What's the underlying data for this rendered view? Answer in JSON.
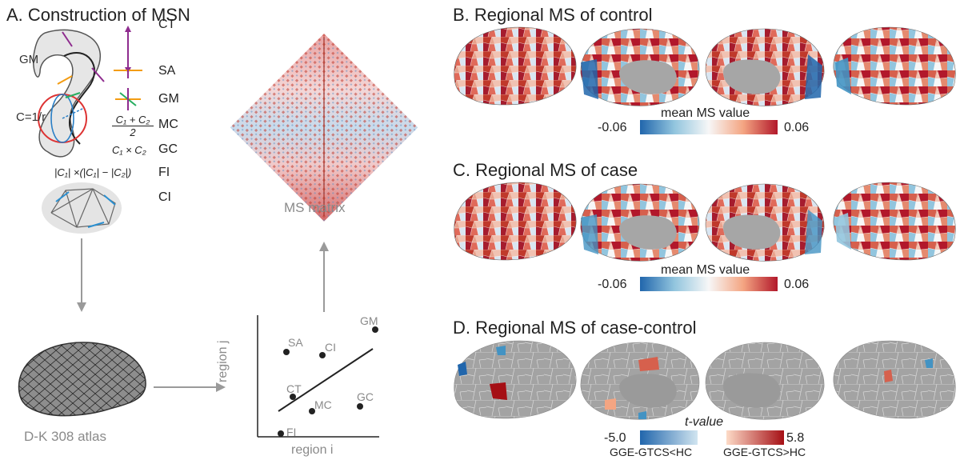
{
  "panelA": {
    "title": "A. Construction of MSN",
    "gm_label": "GM",
    "curv_label": "C=1/r",
    "features": [
      "CT",
      "SA",
      "GM",
      "MC",
      "GC",
      "FI",
      "CI"
    ],
    "mc_formula_num": "C₁ + C₂",
    "mc_formula_den": "2",
    "gc_formula": "C₁ × C₂",
    "fi_formula": "|C₁| ×(|C₁| − |C₂|)",
    "atlas_label": "D-K 308 atlas",
    "matrix_label": "MS matrix",
    "scatter": {
      "xlabel": "region i",
      "ylabel": "region j",
      "points": [
        {
          "label": "SA"
        },
        {
          "label": "CI"
        },
        {
          "label": "GM"
        },
        {
          "label": "CT"
        },
        {
          "label": "MC"
        },
        {
          "label": "GC"
        },
        {
          "label": "FI"
        }
      ]
    }
  },
  "panelB": {
    "title": "B. Regional MS of control",
    "cbar_title": "mean MS value",
    "cbar_min": "-0.06",
    "cbar_max": "0.06"
  },
  "panelC": {
    "title": "C. Regional MS of case",
    "cbar_title": "mean MS value",
    "cbar_min": "-0.06",
    "cbar_max": "0.06"
  },
  "panelD": {
    "title": "D. Regional MS of case-control",
    "cbar_title": "t-value",
    "neg_min": "-5.0",
    "neg_label": "GGE-GTCS<HC",
    "pos_max": "5.8",
    "pos_label": "GGE-GTCS>HC"
  },
  "colors": {
    "red": "#b2182b",
    "blue": "#2166ac",
    "grey_brain": "#9a9a9a",
    "arrow": "#9a9a9a"
  }
}
